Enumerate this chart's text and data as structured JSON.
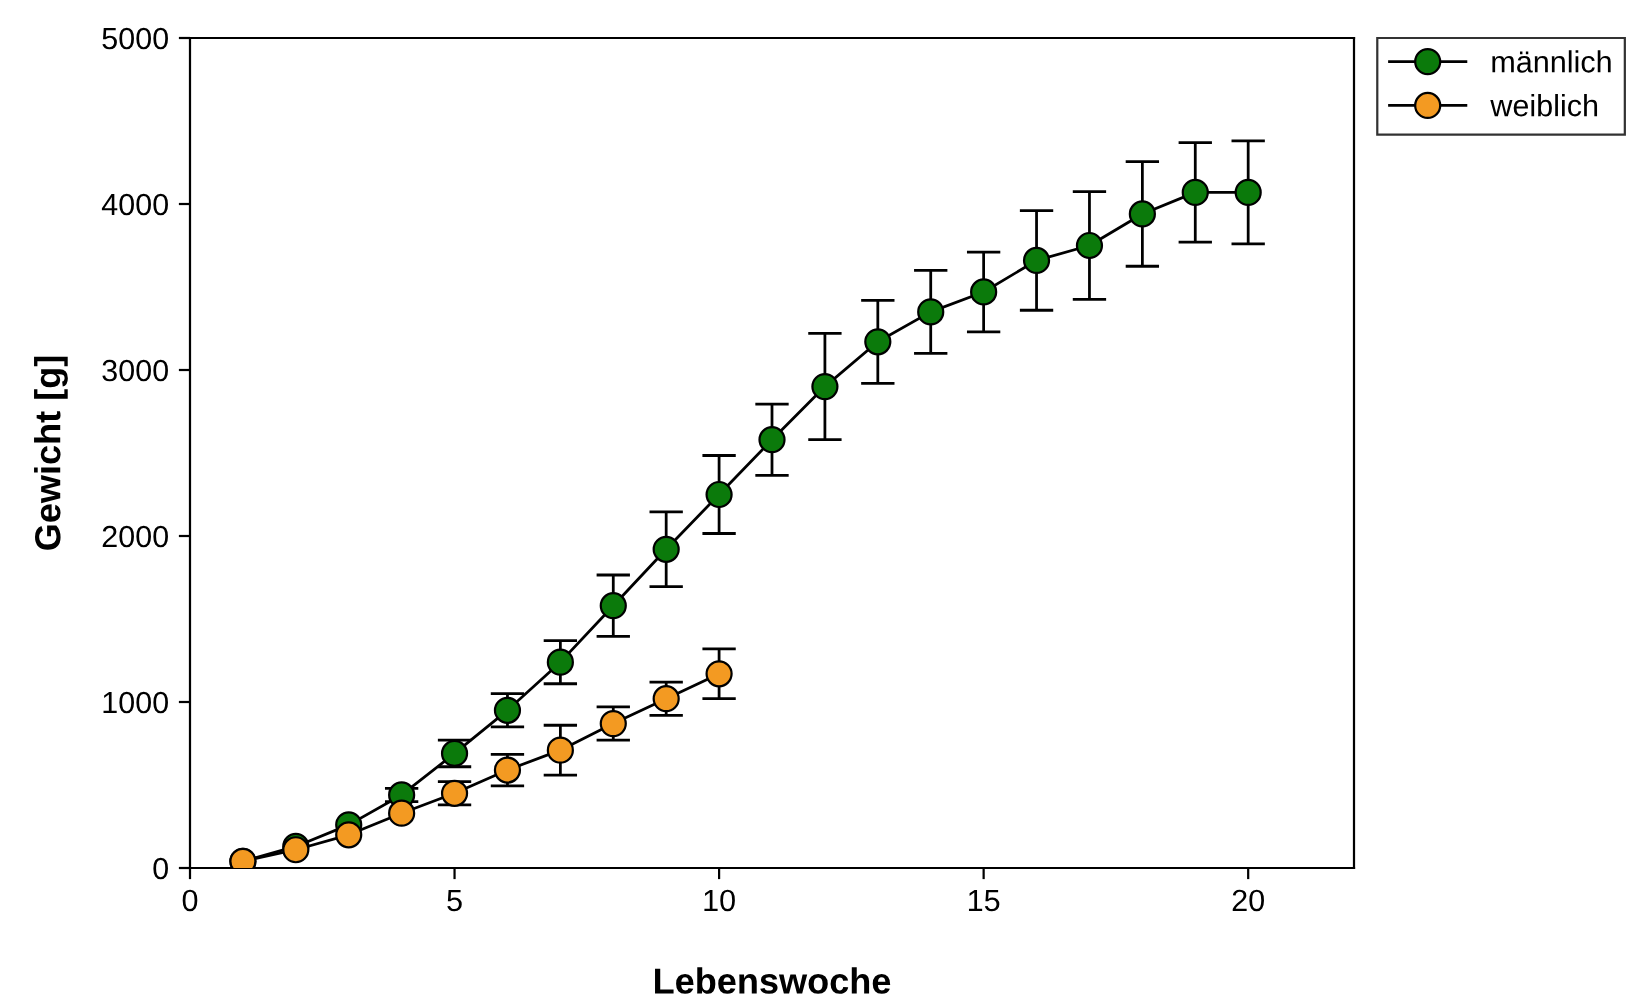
{
  "chart_data": {
    "type": "line",
    "xlabel": "Lebenswoche",
    "ylabel": "Gewicht [g]",
    "xlim": [
      0,
      22
    ],
    "xticks": [
      0,
      5,
      10,
      15,
      20
    ],
    "ylim": [
      0,
      5000
    ],
    "yticks": [
      0,
      1000,
      2000,
      3000,
      4000,
      5000
    ],
    "grid": false,
    "legend": "top right",
    "marker": "circle",
    "line_style": "solid",
    "series": [
      {
        "name": "männlich",
        "color": "#0b7a0b",
        "x": [
          1,
          2,
          3,
          4,
          5,
          6,
          7,
          8,
          9,
          10,
          11,
          12,
          13,
          14,
          15,
          16,
          17,
          18,
          19,
          20
        ],
        "values": [
          40,
          130,
          260,
          440,
          690,
          950,
          1240,
          1580,
          1920,
          2250,
          2580,
          2900,
          3170,
          3350,
          3470,
          3660,
          3750,
          3940,
          4070,
          4070
        ],
        "errors": [
          null,
          null,
          null,
          40,
          80,
          100,
          130,
          185,
          225,
          235,
          215,
          320,
          250,
          250,
          240,
          300,
          325,
          315,
          300,
          310
        ]
      },
      {
        "name": "weiblich",
        "color": "#f39a22",
        "x": [
          1,
          2,
          3,
          4,
          5,
          6,
          7,
          8,
          9,
          10
        ],
        "values": [
          40,
          110,
          200,
          330,
          450,
          590,
          710,
          870,
          1020,
          1170
        ],
        "errors": [
          null,
          null,
          null,
          null,
          70,
          95,
          150,
          100,
          100,
          150
        ]
      }
    ]
  }
}
